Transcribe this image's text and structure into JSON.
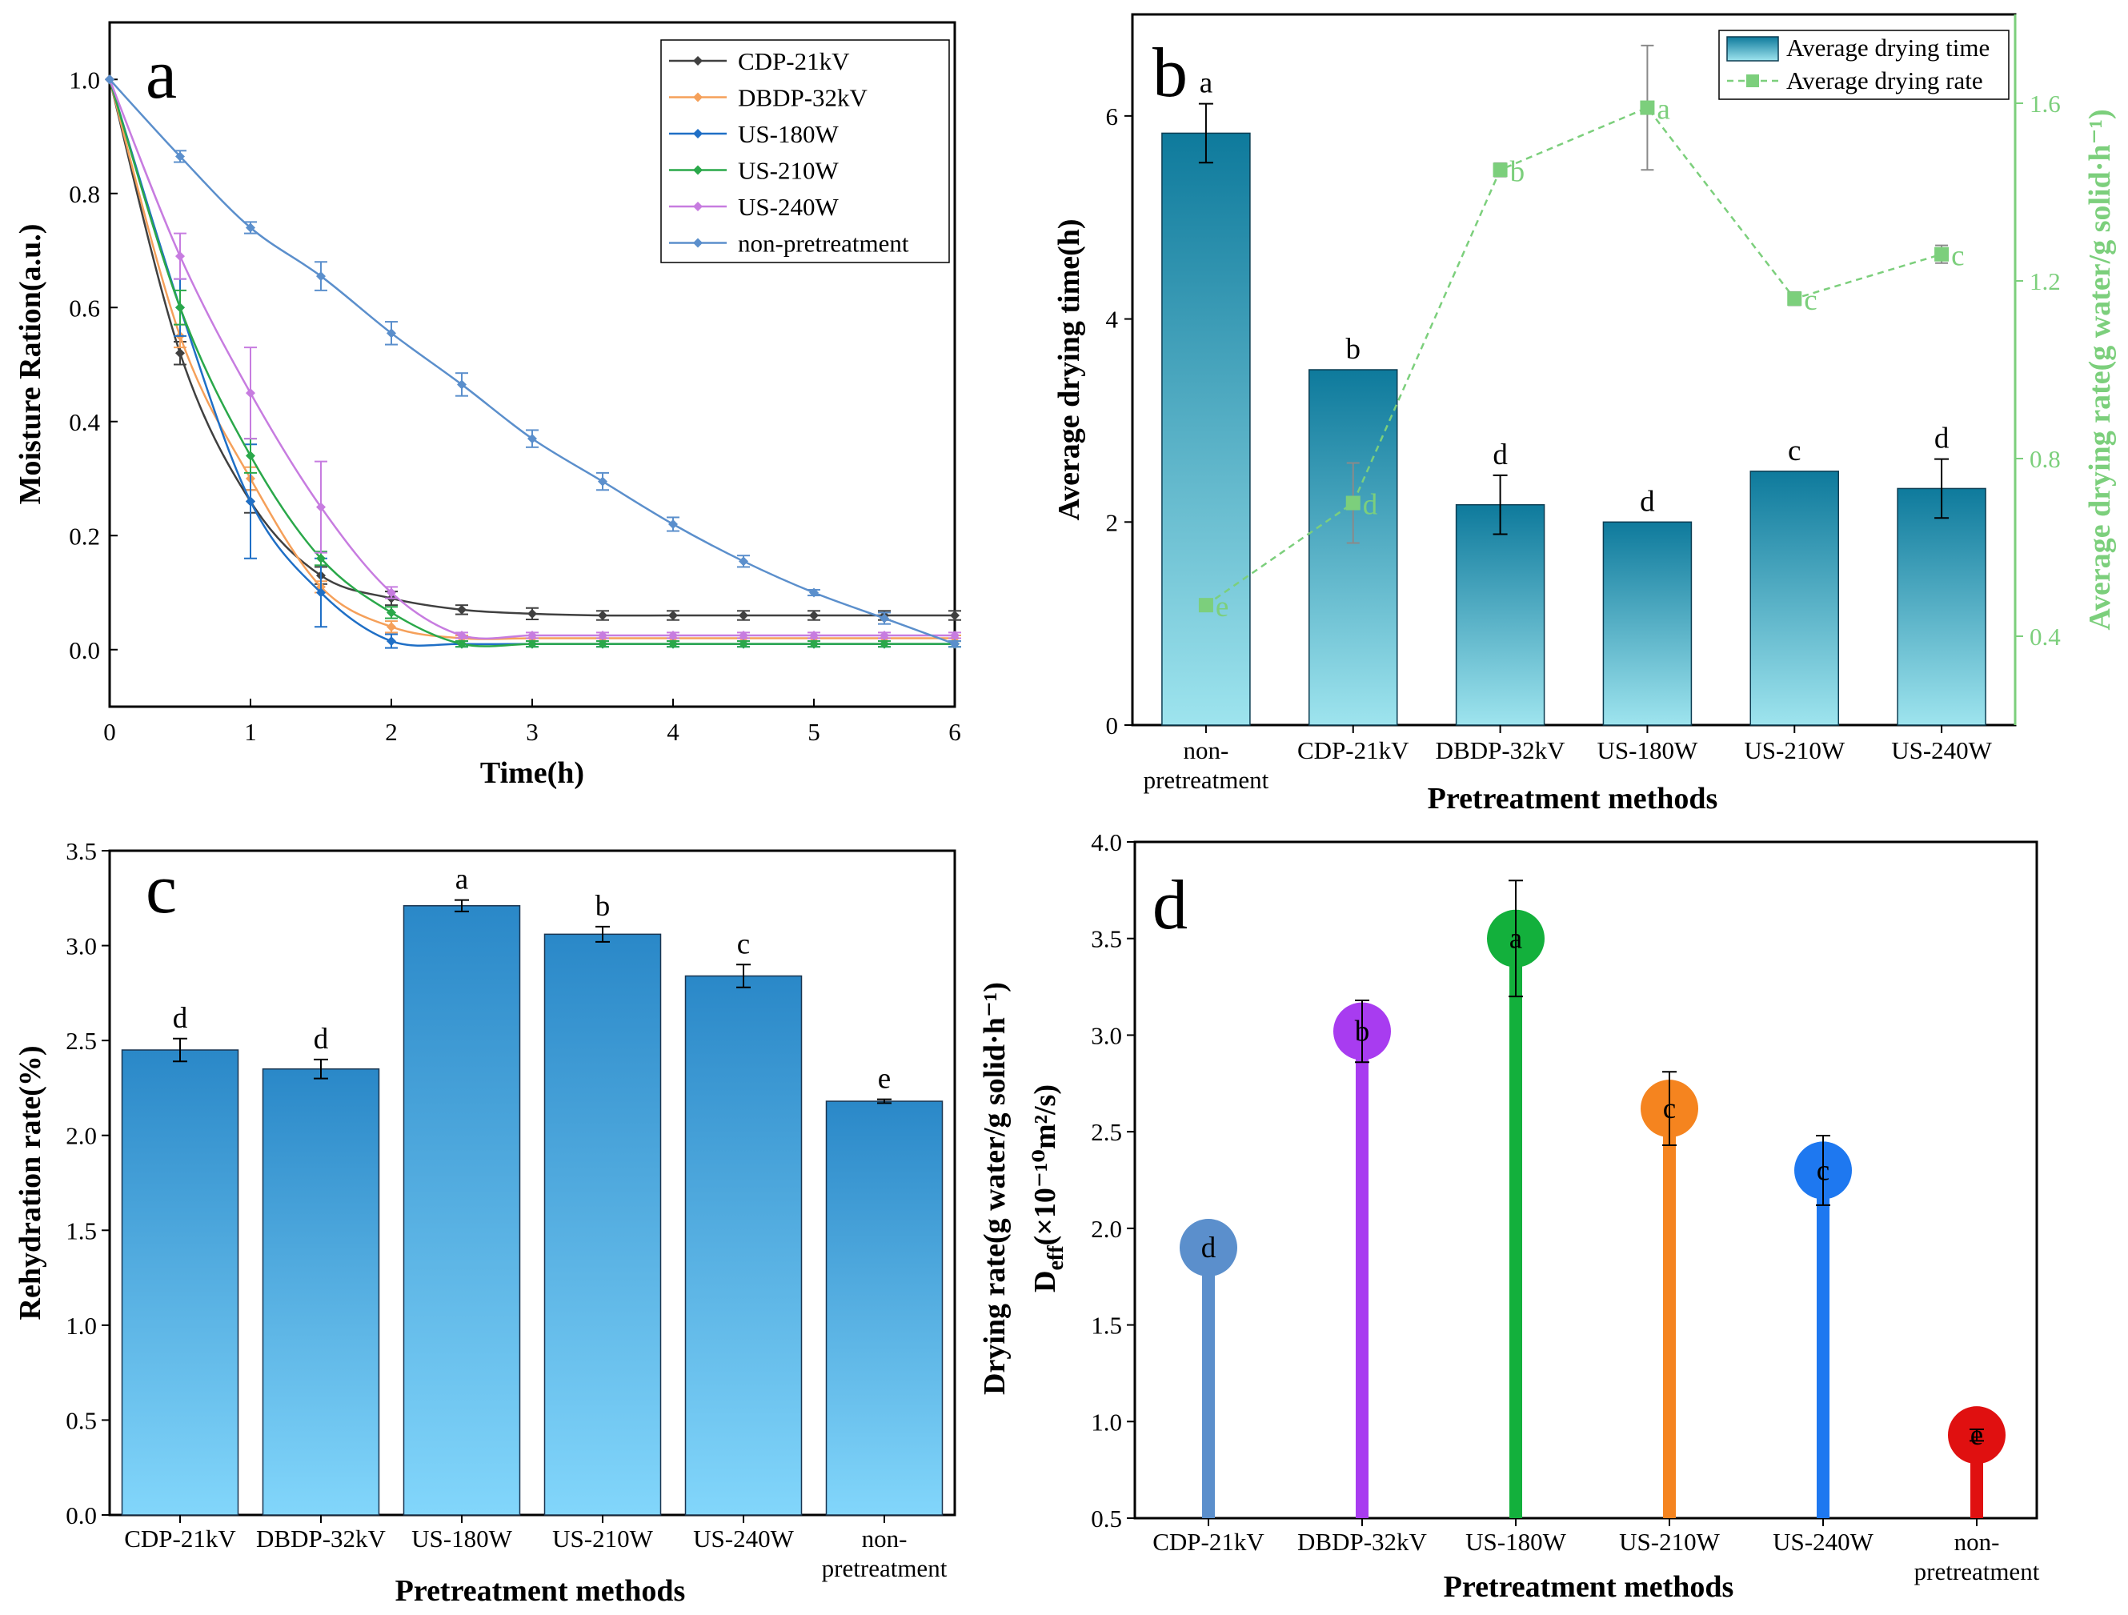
{
  "chart_data": [
    {
      "panel": "a",
      "type": "line",
      "xlabel": "Time(h)",
      "ylabel": "Moisture Ration(a.u.)",
      "xlim": [
        0,
        6
      ],
      "ylim": [
        -0.1,
        1.1
      ],
      "xticks": [
        "0",
        "1",
        "2",
        "3",
        "4",
        "5",
        "6"
      ],
      "yticks": [
        "0.0",
        "0.2",
        "0.4",
        "0.6",
        "0.8",
        "1.0"
      ],
      "legend_position": "top-right",
      "series": [
        {
          "name": "CDP-21kV",
          "color": "#404040",
          "x": [
            0,
            0.5,
            1,
            1.5,
            2,
            2.5,
            3,
            3.5,
            4,
            4.5,
            5,
            5.5,
            6
          ],
          "values": [
            1.0,
            0.52,
            0.26,
            0.13,
            0.09,
            0.07,
            0.063,
            0.06,
            0.06,
            0.06,
            0.06,
            0.06,
            0.06
          ],
          "errors": [
            0,
            0.02,
            0.02,
            0.015,
            0.012,
            0.008,
            0.01,
            0.008,
            0.008,
            0.008,
            0.008,
            0.008,
            0.008
          ]
        },
        {
          "name": "DBDP-32kV",
          "color": "#f5a05a",
          "x": [
            0,
            0.5,
            1,
            1.5,
            2,
            2.5,
            3,
            3.5,
            4,
            4.5,
            5,
            5.5,
            6
          ],
          "values": [
            1.0,
            0.55,
            0.3,
            0.11,
            0.04,
            0.02,
            0.02,
            0.02,
            0.02,
            0.02,
            0.02,
            0.02,
            0.02
          ],
          "errors": [
            0,
            0.02,
            0.02,
            0.01,
            0.01,
            0.005,
            0.005,
            0.005,
            0.005,
            0.005,
            0.005,
            0.005,
            0.005
          ]
        },
        {
          "name": "US-180W",
          "color": "#1f6fc6",
          "x": [
            0,
            0.5,
            1,
            1.5,
            2,
            2.5,
            3,
            3.5,
            4,
            4.5,
            5,
            5.5,
            6
          ],
          "values": [
            1.0,
            0.6,
            0.26,
            0.1,
            0.015,
            0.01,
            0.01,
            0.01,
            0.01,
            0.01,
            0.01,
            0.01,
            0.01
          ],
          "errors": [
            0,
            0.05,
            0.1,
            0.06,
            0.012,
            0.005,
            0.005,
            0.005,
            0.005,
            0.005,
            0.005,
            0.005,
            0.005
          ]
        },
        {
          "name": "US-210W",
          "color": "#2aa84a",
          "x": [
            0,
            0.5,
            1,
            1.5,
            2,
            2.5,
            3,
            3.5,
            4,
            4.5,
            5,
            5.5,
            6
          ],
          "values": [
            1.0,
            0.6,
            0.34,
            0.16,
            0.065,
            0.01,
            0.01,
            0.01,
            0.01,
            0.01,
            0.01,
            0.01,
            0.01
          ],
          "errors": [
            0,
            0.03,
            0.03,
            0.012,
            0.01,
            0.005,
            0.005,
            0.005,
            0.005,
            0.005,
            0.005,
            0.005,
            0.005
          ]
        },
        {
          "name": "US-240W",
          "color": "#c77ce0",
          "x": [
            0,
            0.5,
            1,
            1.5,
            2,
            2.5,
            3,
            3.5,
            4,
            4.5,
            5,
            5.5,
            6
          ],
          "values": [
            1.0,
            0.69,
            0.45,
            0.25,
            0.1,
            0.025,
            0.025,
            0.025,
            0.025,
            0.025,
            0.025,
            0.025,
            0.025
          ],
          "errors": [
            0,
            0.04,
            0.08,
            0.08,
            0.01,
            0.005,
            0.005,
            0.005,
            0.005,
            0.005,
            0.005,
            0.005,
            0.005
          ]
        },
        {
          "name": "non-pretreatment",
          "color": "#5b8fcc",
          "x": [
            0,
            0.5,
            1,
            1.5,
            2,
            2.5,
            3,
            3.5,
            4,
            4.5,
            5,
            5.5,
            6
          ],
          "values": [
            1.0,
            0.865,
            0.74,
            0.655,
            0.555,
            0.465,
            0.37,
            0.295,
            0.22,
            0.155,
            0.1,
            0.055,
            0.01
          ],
          "errors": [
            0,
            0.01,
            0.01,
            0.025,
            0.02,
            0.02,
            0.015,
            0.015,
            0.012,
            0.01,
            0.005,
            0.01,
            0.005
          ]
        }
      ]
    },
    {
      "panel": "b",
      "type": "bar",
      "xlabel": "Pretreatment methods",
      "ylabel": "Average drying time(h)",
      "ylabel_right": "Average drying rate(g water/g solid·h⁻¹)",
      "categories": [
        "non-pretreatment",
        "CDP-21kV",
        "DBDP-32kV",
        "US-180W",
        "US-210W",
        "US-240W"
      ],
      "category_lines": [
        [
          "non-",
          "pretreatment"
        ],
        [
          "CDP-21kV"
        ],
        [
          "DBDP-32kV"
        ],
        [
          "US-180W"
        ],
        [
          "US-210W"
        ],
        [
          "US-240W"
        ]
      ],
      "ylim": [
        0,
        7
      ],
      "ylim_right": [
        0.2,
        1.8
      ],
      "yticks": [
        "0",
        "2",
        "4",
        "6"
      ],
      "yticks_right": [
        "0.4",
        "0.8",
        "1.2",
        "1.6"
      ],
      "legend_position": "top-right",
      "series": [
        {
          "name": "Average drying time",
          "type": "bar",
          "values": [
            5.83,
            3.5,
            2.17,
            2.0,
            2.5,
            2.33
          ],
          "errors": [
            0.29,
            0.0,
            0.29,
            0.0,
            0.0,
            0.29
          ],
          "letters": [
            "a",
            "b",
            "d",
            "d",
            "c",
            "d"
          ]
        },
        {
          "name": "Average drying rate",
          "type": "line",
          "axis": "right",
          "values": [
            0.47,
            0.7,
            1.45,
            1.59,
            1.16,
            1.26
          ],
          "errors": [
            0.01,
            0.09,
            0.015,
            0.14,
            0.015,
            0.02
          ],
          "letters": [
            "e",
            "d",
            "b",
            "a",
            "c",
            "c"
          ]
        }
      ]
    },
    {
      "panel": "c",
      "type": "bar",
      "xlabel": "Pretreatment methods",
      "ylabel": "Rehydration rate(%)",
      "categories": [
        "CDP-21kV",
        "DBDP-32kV",
        "US-180W",
        "US-210W",
        "US-240W",
        "non-pretreatment"
      ],
      "category_lines": [
        [
          "CDP-21kV"
        ],
        [
          "DBDP-32kV"
        ],
        [
          "US-180W"
        ],
        [
          "US-210W"
        ],
        [
          "US-240W"
        ],
        [
          "non-",
          "pretreatment"
        ]
      ],
      "ylim": [
        0,
        3.5
      ],
      "yticks": [
        "0.0",
        "0.5",
        "1.0",
        "1.5",
        "2.0",
        "2.5",
        "3.0",
        "3.5"
      ],
      "values": [
        2.45,
        2.35,
        3.21,
        3.06,
        2.84,
        2.18
      ],
      "errors": [
        0.06,
        0.05,
        0.03,
        0.04,
        0.06,
        0.01
      ],
      "letters": [
        "d",
        "d",
        "a",
        "b",
        "c",
        "e"
      ]
    },
    {
      "panel": "d",
      "type": "lollipop",
      "xlabel": "Pretreatment methods",
      "ylabel": "Drying rate(g water/g solid·h⁻¹)",
      "ylabel_deff": "D",
      "ylabel_deff_sub": "eff",
      "ylabel_deff_rest": "(×10⁻¹⁰m²/s)",
      "categories": [
        "CDP-21kV",
        "DBDP-32kV",
        "US-180W",
        "US-210W",
        "US-240W",
        "non-pretreatment"
      ],
      "category_lines": [
        [
          "CDP-21kV"
        ],
        [
          "DBDP-32kV"
        ],
        [
          "US-180W"
        ],
        [
          "US-210W"
        ],
        [
          "US-240W"
        ],
        [
          "non-",
          "pretreatment"
        ]
      ],
      "ylim": [
        0.5,
        4.0
      ],
      "yticks": [
        "0.5",
        "1.0",
        "1.5",
        "2.0",
        "2.5",
        "3.0",
        "3.5",
        "4.0"
      ],
      "values": [
        1.9,
        3.02,
        3.5,
        2.62,
        2.3,
        0.93
      ],
      "errors": [
        0.0,
        0.16,
        0.3,
        0.19,
        0.18,
        0.03
      ],
      "letters": [
        "d",
        "b",
        "a",
        "c",
        "c",
        "e"
      ],
      "colors": [
        "#5b8fcc",
        "#a83cf0",
        "#13b03c",
        "#f5841f",
        "#1e78f0",
        "#e01010"
      ]
    }
  ]
}
